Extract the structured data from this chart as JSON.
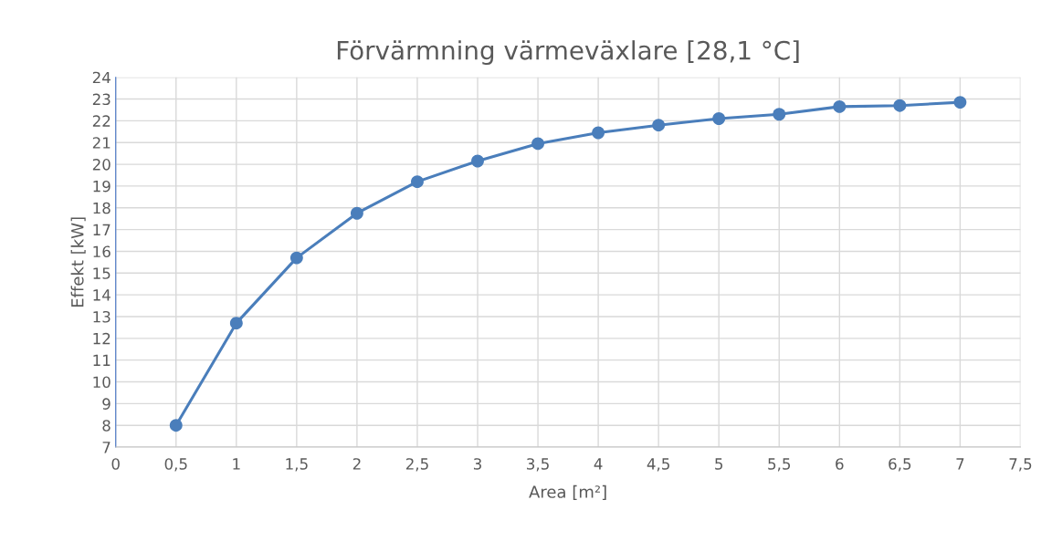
{
  "chart_data": {
    "type": "line",
    "title": "Förvärmning värmeväxlare [28,1 °C]",
    "xlabel": "Area [m²]",
    "ylabel": "Effekt [kW]",
    "x": [
      0.5,
      1,
      1.5,
      2,
      2.5,
      3,
      3.5,
      4,
      4.5,
      5,
      5.5,
      6,
      6.5,
      7
    ],
    "series": [
      {
        "color": "#4a7ebb",
        "values": [
          8.0,
          12.7,
          15.7,
          17.75,
          19.2,
          20.15,
          20.95,
          21.45,
          21.8,
          22.1,
          22.3,
          22.65,
          22.7,
          22.85
        ]
      }
    ],
    "xlim": [
      0,
      7.5
    ],
    "xticks": [
      0,
      {
        "value": 0.5,
        "label": "0,5"
      },
      1,
      {
        "value": 1.5,
        "label": "1,5"
      },
      2,
      {
        "value": 2.5,
        "label": "2,5"
      },
      3,
      {
        "value": 3.5,
        "label": "3,5"
      },
      4,
      {
        "value": 4.5,
        "label": "4,5"
      },
      5,
      {
        "value": 5.5,
        "label": "5,5"
      },
      6,
      {
        "value": 6.5,
        "label": "6,5"
      },
      7,
      {
        "value": 7.5,
        "label": "7,5"
      }
    ],
    "ylim": [
      7,
      24
    ],
    "yticks": [
      7,
      8,
      9,
      10,
      11,
      12,
      13,
      14,
      15,
      16,
      17,
      18,
      19,
      20,
      21,
      22,
      23,
      24
    ],
    "grid": true,
    "marker": "circle",
    "line_style": "solid"
  }
}
